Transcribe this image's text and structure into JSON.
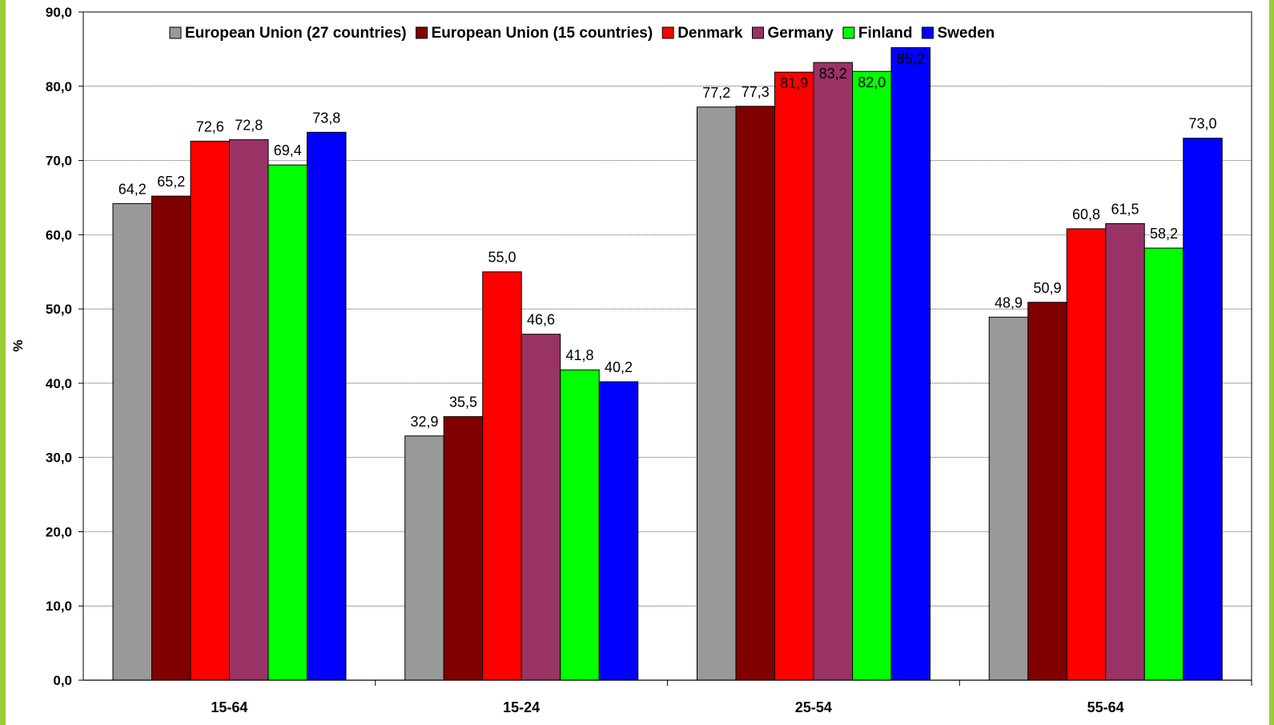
{
  "frame": {
    "stripe_color": "#99cc33"
  },
  "chart_data": {
    "type": "bar",
    "title": "",
    "xlabel": "",
    "ylabel": "%",
    "ylim": [
      0,
      90
    ],
    "ytick_step": 10,
    "ytick_labels": [
      "0,0",
      "10,0",
      "20,0",
      "30,0",
      "40,0",
      "50,0",
      "60,0",
      "70,0",
      "80,0",
      "90,0"
    ],
    "grid": true,
    "legend_position": "top",
    "categories": [
      "15-64",
      "15-24",
      "25-54",
      "55-64"
    ],
    "series": [
      {
        "name": "European Union (27 countries)",
        "color": "#999999",
        "values": [
          64.2,
          32.9,
          77.2,
          48.9
        ],
        "labels": [
          "64,2",
          "32,9",
          "77,2",
          "48,9"
        ]
      },
      {
        "name": "European Union (15 countries)",
        "color": "#800000",
        "values": [
          65.2,
          35.5,
          77.3,
          50.9
        ],
        "labels": [
          "65,2",
          "35,5",
          "77,3",
          "50,9"
        ]
      },
      {
        "name": "Denmark",
        "color": "#ff0000",
        "values": [
          72.6,
          55.0,
          81.9,
          60.8
        ],
        "labels": [
          "72,6",
          "55,0",
          "81,9",
          "60,8"
        ]
      },
      {
        "name": "Germany",
        "color": "#993366",
        "values": [
          72.8,
          46.6,
          83.2,
          61.5
        ],
        "labels": [
          "72,8",
          "46,6",
          "83,2",
          "61,5"
        ]
      },
      {
        "name": "Finland",
        "color": "#00ff00",
        "values": [
          69.4,
          41.8,
          82.0,
          58.2
        ],
        "labels": [
          "69,4",
          "41,8",
          "82,0",
          "58,2"
        ]
      },
      {
        "name": "Sweden",
        "color": "#0000ff",
        "values": [
          73.8,
          40.2,
          85.2,
          73.0
        ],
        "labels": [
          "73,8",
          "40,2",
          "85,2",
          "73,0"
        ]
      }
    ]
  }
}
